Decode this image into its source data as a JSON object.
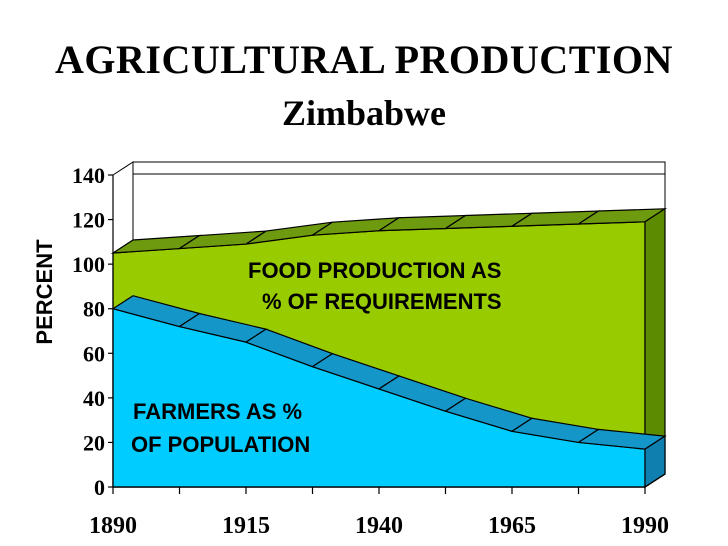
{
  "chart_data": {
    "type": "area",
    "title": "AGRICULTURAL PRODUCTION",
    "subtitle": "Zimbabwe",
    "ylabel": "PERCENT",
    "xlabel": "",
    "ylim": [
      0,
      140
    ],
    "xlim": [
      1890,
      1990
    ],
    "yticks": [
      0,
      20,
      40,
      60,
      80,
      100,
      120,
      140
    ],
    "xticks": [
      1890,
      1915,
      1940,
      1965,
      1990
    ],
    "grid": false,
    "series": [
      {
        "name": "FOOD PRODUCTION AS % OF REQUIREMENTS",
        "color": "#99CC00",
        "x": [
          1890,
          1902.5,
          1915,
          1927.5,
          1940,
          1952.5,
          1965,
          1977.5,
          1990
        ],
        "values": [
          105,
          107,
          109,
          113,
          115,
          116,
          117,
          118,
          119
        ]
      },
      {
        "name": "FARMERS AS % OF POPULATION",
        "color": "#00CCFF",
        "x": [
          1890,
          1902.5,
          1915,
          1927.5,
          1940,
          1952.5,
          1965,
          1977.5,
          1990
        ],
        "values": [
          80,
          72,
          65,
          54,
          44,
          34,
          25,
          20,
          17
        ]
      }
    ],
    "annotations": [
      {
        "line1": "FOOD PRODUCTION AS",
        "line2": "% OF REQUIREMENTS"
      },
      {
        "line1": "FARMERS AS %",
        "line2": "OF POPULATION"
      }
    ]
  }
}
